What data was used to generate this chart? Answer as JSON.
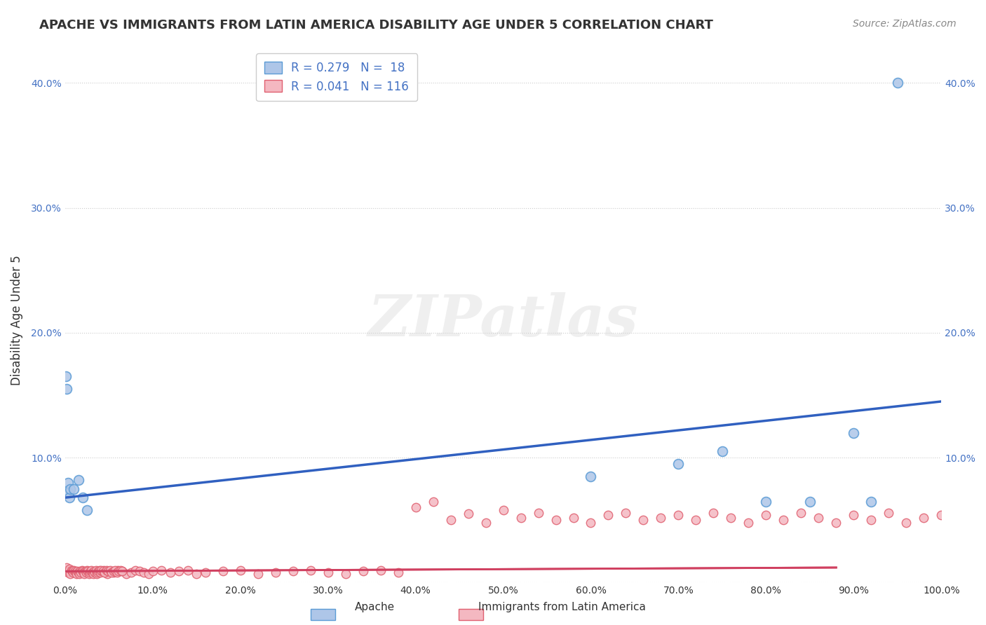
{
  "title": "APACHE VS IMMIGRANTS FROM LATIN AMERICA DISABILITY AGE UNDER 5 CORRELATION CHART",
  "source": "Source: ZipAtlas.com",
  "ylabel": "Disability Age Under 5",
  "xlabel": "",
  "xlim": [
    0,
    1.0
  ],
  "ylim": [
    0,
    0.42
  ],
  "xticks": [
    0.0,
    0.1,
    0.2,
    0.3,
    0.4,
    0.5,
    0.6,
    0.7,
    0.8,
    0.9,
    1.0
  ],
  "yticks": [
    0.0,
    0.1,
    0.2,
    0.3,
    0.4
  ],
  "ytick_labels": [
    "",
    "10.0%",
    "20.0%",
    "30.0%",
    "40.0%"
  ],
  "xtick_labels": [
    "0.0%",
    "10.0%",
    "20.0%",
    "30.0%",
    "40.0%",
    "50.0%",
    "60.0%",
    "70.0%",
    "80.0%",
    "90.0%",
    "100.0%"
  ],
  "apache_color": "#aec6e8",
  "apache_edge": "#5b9bd5",
  "latin_color": "#f4b8c1",
  "latin_edge": "#e06070",
  "trend_blue": "#3060c0",
  "trend_pink": "#d04060",
  "legend_R_apache": "R = 0.279",
  "legend_N_apache": "N =  18",
  "legend_R_latin": "R = 0.041",
  "legend_N_latin": "N = 116",
  "apache_label": "Apache",
  "latin_label": "Immigrants from Latin America",
  "watermark": "ZIPatlas",
  "apache_x": [
    0.001,
    0.002,
    0.003,
    0.004,
    0.005,
    0.006,
    0.01,
    0.015,
    0.02,
    0.025,
    0.6,
    0.7,
    0.75,
    0.8,
    0.85,
    0.9,
    0.92,
    0.95
  ],
  "apache_y": [
    0.165,
    0.155,
    0.08,
    0.072,
    0.068,
    0.075,
    0.075,
    0.082,
    0.068,
    0.058,
    0.085,
    0.095,
    0.105,
    0.065,
    0.065,
    0.12,
    0.065,
    0.4
  ],
  "latin_x": [
    0.001,
    0.002,
    0.003,
    0.004,
    0.005,
    0.006,
    0.007,
    0.008,
    0.009,
    0.01,
    0.011,
    0.012,
    0.013,
    0.014,
    0.015,
    0.016,
    0.017,
    0.018,
    0.019,
    0.02,
    0.021,
    0.022,
    0.023,
    0.024,
    0.025,
    0.026,
    0.027,
    0.028,
    0.029,
    0.03,
    0.031,
    0.032,
    0.033,
    0.034,
    0.035,
    0.036,
    0.037,
    0.038,
    0.039,
    0.04,
    0.042,
    0.044,
    0.046,
    0.048,
    0.05,
    0.055,
    0.06,
    0.065,
    0.07,
    0.075,
    0.08,
    0.085,
    0.09,
    0.095,
    0.1,
    0.11,
    0.12,
    0.13,
    0.14,
    0.15,
    0.16,
    0.18,
    0.2,
    0.22,
    0.24,
    0.26,
    0.28,
    0.3,
    0.32,
    0.34,
    0.36,
    0.38,
    0.4,
    0.42,
    0.44,
    0.46,
    0.48,
    0.5,
    0.52,
    0.54,
    0.56,
    0.58,
    0.6,
    0.62,
    0.64,
    0.66,
    0.68,
    0.7,
    0.72,
    0.74,
    0.76,
    0.78,
    0.8,
    0.82,
    0.84,
    0.86,
    0.88,
    0.9,
    0.92,
    0.94,
    0.96,
    0.98,
    1.0,
    0.041,
    0.043,
    0.045,
    0.047,
    0.049,
    0.051,
    0.053,
    0.055,
    0.057,
    0.059,
    0.061,
    0.063,
    0.065
  ],
  "latin_y": [
    0.01,
    0.012,
    0.008,
    0.009,
    0.011,
    0.007,
    0.01,
    0.009,
    0.008,
    0.01,
    0.009,
    0.008,
    0.007,
    0.009,
    0.008,
    0.007,
    0.009,
    0.008,
    0.01,
    0.009,
    0.008,
    0.007,
    0.009,
    0.008,
    0.01,
    0.009,
    0.007,
    0.008,
    0.009,
    0.01,
    0.008,
    0.007,
    0.009,
    0.008,
    0.01,
    0.007,
    0.008,
    0.009,
    0.01,
    0.008,
    0.009,
    0.01,
    0.008,
    0.007,
    0.009,
    0.008,
    0.01,
    0.009,
    0.007,
    0.008,
    0.01,
    0.009,
    0.008,
    0.007,
    0.009,
    0.01,
    0.008,
    0.009,
    0.01,
    0.007,
    0.008,
    0.009,
    0.01,
    0.007,
    0.008,
    0.009,
    0.01,
    0.008,
    0.007,
    0.009,
    0.01,
    0.008,
    0.06,
    0.065,
    0.05,
    0.055,
    0.048,
    0.058,
    0.052,
    0.056,
    0.05,
    0.052,
    0.048,
    0.054,
    0.056,
    0.05,
    0.052,
    0.054,
    0.05,
    0.056,
    0.052,
    0.048,
    0.054,
    0.05,
    0.056,
    0.052,
    0.048,
    0.054,
    0.05,
    0.056,
    0.048,
    0.052,
    0.054,
    0.01,
    0.009,
    0.008,
    0.01,
    0.009,
    0.01,
    0.008,
    0.009,
    0.01,
    0.008,
    0.009,
    0.01,
    0.009
  ]
}
